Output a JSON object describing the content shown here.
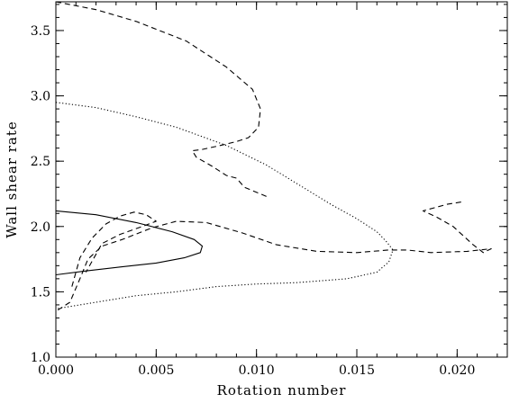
{
  "chart_data": {
    "type": "line",
    "title": "",
    "xlabel": "Rotation number",
    "ylabel": "Wall shear rate",
    "xlim": [
      0.0,
      0.0225
    ],
    "ylim": [
      1.0,
      3.72
    ],
    "grid": false,
    "legend": "none",
    "xticks": [
      0.0,
      0.005,
      0.01,
      0.015,
      0.02
    ],
    "xtick_labels": [
      "0.000",
      "0.005",
      "0.010",
      "0.015",
      "0.020"
    ],
    "yticks": [
      1.0,
      1.5,
      2.0,
      2.5,
      3.0,
      3.5
    ],
    "ytick_labels": [
      "1.0",
      "1.5",
      "2.0",
      "2.5",
      "3.0",
      "3.5"
    ],
    "series": [
      {
        "style": "solid",
        "points": [
          [
            0.0,
            2.12
          ],
          [
            0.002,
            2.09
          ],
          [
            0.004,
            2.03
          ],
          [
            0.0058,
            1.96
          ],
          [
            0.0069,
            1.9
          ],
          [
            0.0073,
            1.85
          ],
          [
            0.0072,
            1.8
          ],
          [
            0.0064,
            1.76
          ],
          [
            0.005,
            1.72
          ],
          [
            0.0032,
            1.69
          ],
          [
            0.0015,
            1.66
          ],
          [
            0.0,
            1.63
          ]
        ]
      },
      {
        "style": "dotted",
        "points": [
          [
            0.0,
            2.95
          ],
          [
            0.002,
            2.91
          ],
          [
            0.004,
            2.84
          ],
          [
            0.006,
            2.76
          ],
          [
            0.0085,
            2.62
          ],
          [
            0.0105,
            2.47
          ],
          [
            0.012,
            2.33
          ],
          [
            0.0137,
            2.17
          ],
          [
            0.015,
            2.06
          ],
          [
            0.016,
            1.96
          ],
          [
            0.0165,
            1.88
          ],
          [
            0.0168,
            1.82
          ],
          [
            0.0166,
            1.73
          ],
          [
            0.016,
            1.65
          ],
          [
            0.0145,
            1.6
          ],
          [
            0.012,
            1.57
          ],
          [
            0.01,
            1.56
          ],
          [
            0.008,
            1.54
          ],
          [
            0.006,
            1.5
          ],
          [
            0.004,
            1.47
          ],
          [
            0.002,
            1.42
          ],
          [
            0.0,
            1.37
          ]
        ]
      },
      {
        "style": "dashed",
        "points": [
          [
            0.0,
            3.72
          ],
          [
            0.002,
            3.66
          ],
          [
            0.004,
            3.57
          ],
          [
            0.0065,
            3.42
          ],
          [
            0.0085,
            3.22
          ],
          [
            0.0098,
            3.05
          ],
          [
            0.0102,
            2.9
          ],
          [
            0.0101,
            2.76
          ],
          [
            0.0096,
            2.68
          ],
          [
            0.009,
            2.65
          ],
          [
            0.0082,
            2.62
          ],
          [
            0.0073,
            2.59
          ],
          [
            0.0068,
            2.58
          ],
          [
            0.007,
            2.53
          ],
          [
            0.0078,
            2.46
          ],
          [
            0.0085,
            2.39
          ],
          [
            0.009,
            2.37
          ],
          [
            0.0094,
            2.3
          ],
          [
            0.0105,
            2.23
          ]
        ]
      },
      {
        "style": "dashed",
        "points": [
          [
            0.0001,
            1.36
          ],
          [
            0.0007,
            1.42
          ],
          [
            0.0012,
            1.6
          ],
          [
            0.0016,
            1.75
          ],
          [
            0.0023,
            1.85
          ],
          [
            0.0033,
            1.9
          ],
          [
            0.0048,
            1.99
          ],
          [
            0.006,
            2.04
          ],
          [
            0.0075,
            2.03
          ],
          [
            0.0093,
            1.95
          ],
          [
            0.011,
            1.86
          ],
          [
            0.013,
            1.81
          ],
          [
            0.015,
            1.8
          ],
          [
            0.0166,
            1.82
          ],
          [
            0.0175,
            1.82
          ],
          [
            0.0187,
            1.8
          ],
          [
            0.0205,
            1.81
          ],
          [
            0.0217,
            1.83
          ],
          [
            0.0213,
            1.8
          ],
          [
            0.0208,
            1.86
          ],
          [
            0.0198,
            2.0
          ],
          [
            0.019,
            2.07
          ],
          [
            0.0183,
            2.12
          ],
          [
            0.0188,
            2.14
          ],
          [
            0.0195,
            2.17
          ],
          [
            0.0203,
            2.19
          ]
        ]
      },
      {
        "style": "dashed",
        "points": [
          [
            0.0008,
            1.54
          ],
          [
            0.0012,
            1.76
          ],
          [
            0.0018,
            1.91
          ],
          [
            0.0025,
            2.02
          ],
          [
            0.0032,
            2.08
          ],
          [
            0.0039,
            2.11
          ],
          [
            0.0045,
            2.09
          ],
          [
            0.005,
            2.04
          ],
          [
            0.0043,
            2.0
          ],
          [
            0.0032,
            1.94
          ],
          [
            0.0023,
            1.87
          ],
          [
            0.0015,
            1.65
          ]
        ]
      }
    ]
  }
}
